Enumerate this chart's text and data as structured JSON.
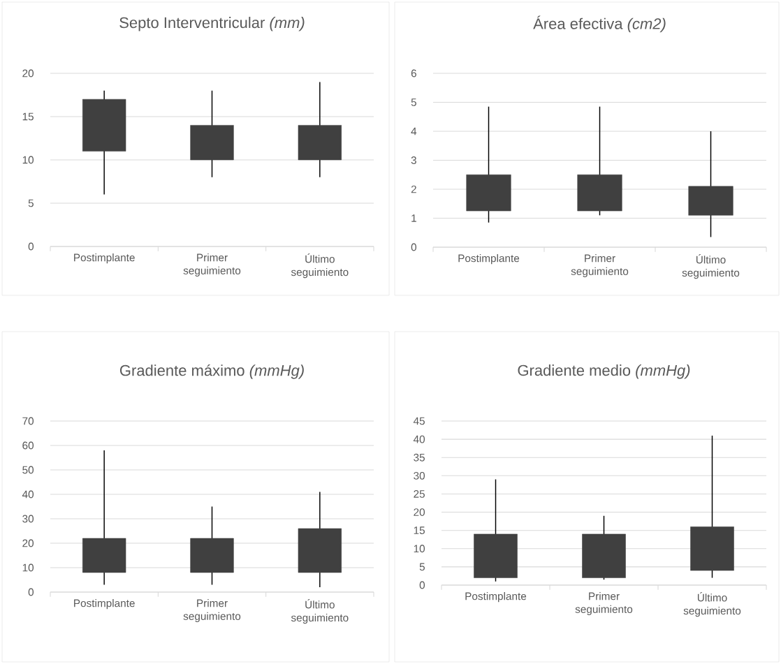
{
  "chart_data": [
    {
      "type": "candlestick",
      "title": "Septo Interventricular *(mm)*",
      "categories": [
        "Postimplante",
        "Primer seguimiento",
        "Último seguimiento"
      ],
      "color": "#404040",
      "grid": "y",
      "ylim": [
        0,
        20
      ],
      "yticks": [
        0,
        5,
        10,
        15,
        20
      ],
      "ohlc": [
        [
          11,
          18,
          6,
          17
        ],
        [
          10,
          18,
          8,
          14
        ],
        [
          10,
          19,
          8,
          14
        ]
      ]
    },
    {
      "type": "candlestick",
      "title": "Área efectiva *(cm2)*",
      "categories": [
        "Postimplante",
        "Primer seguimiento",
        "Último seguimiento"
      ],
      "color": "#404040",
      "grid": "y",
      "ylim": [
        0,
        6
      ],
      "yticks": [
        0,
        1,
        2,
        3,
        4,
        5,
        6
      ],
      "ohlc": [
        [
          1.25,
          4.85,
          0.85,
          2.5
        ],
        [
          1.25,
          4.85,
          1.1,
          2.5
        ],
        [
          1.1,
          4.0,
          0.35,
          2.1
        ]
      ]
    },
    {
      "type": "candlestick",
      "title": "Gradiente máximo *(mmHg)*",
      "categories": [
        "Postimplante",
        "Primer seguimiento",
        "Último seguimiento"
      ],
      "color": "#404040",
      "grid": "y",
      "ylim": [
        0,
        70
      ],
      "yticks": [
        0,
        10,
        20,
        30,
        40,
        50,
        60,
        70
      ],
      "ohlc": [
        [
          8,
          58,
          3,
          22
        ],
        [
          8,
          35,
          3,
          22
        ],
        [
          8,
          41,
          2,
          26
        ]
      ]
    },
    {
      "type": "candlestick",
      "title": "Gradiente medio *(mmHg)*",
      "categories": [
        "Postimplante",
        "Primer seguimiento",
        "Último seguimiento"
      ],
      "color": "#404040",
      "grid": "y",
      "ylim": [
        0,
        45
      ],
      "yticks": [
        0,
        5,
        10,
        15,
        20,
        25,
        30,
        35,
        40,
        45
      ],
      "ohlc": [
        [
          2,
          29,
          1,
          14
        ],
        [
          2,
          19,
          1.5,
          14
        ],
        [
          4,
          41,
          2,
          16
        ]
      ]
    }
  ]
}
